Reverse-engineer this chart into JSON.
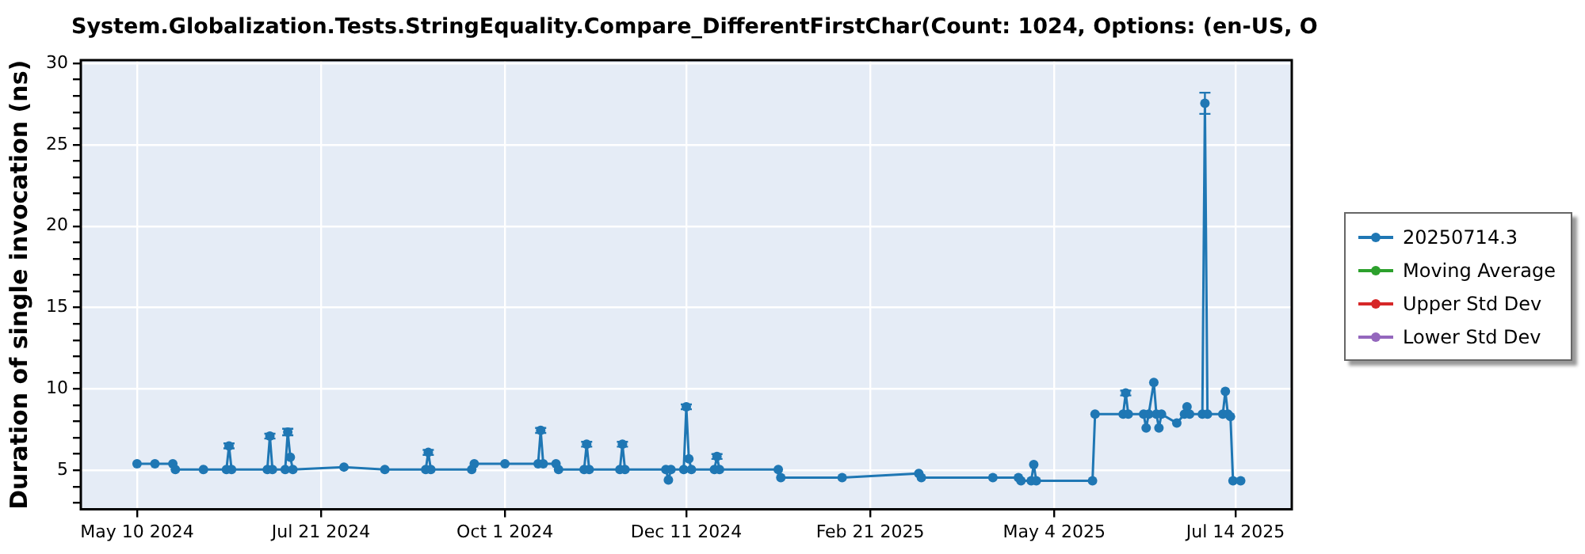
{
  "chart_data": {
    "type": "line",
    "title": "System.Globalization.Tests.StringEquality.Compare_DifferentFirstChar(Count: 1024, Options: (en-US, O",
    "ylabel": "Duration of single invocation (ns)",
    "x": [
      "2024-05-10",
      "2024-05-17",
      "2024-05-24",
      "2024-05-25",
      "2024-06-05",
      "2024-06-14",
      "2024-06-15",
      "2024-06-16",
      "2024-06-30",
      "2024-07-01",
      "2024-07-02",
      "2024-07-07",
      "2024-07-08",
      "2024-07-09",
      "2024-07-10",
      "2024-07-30",
      "2024-08-15",
      "2024-08-31",
      "2024-09-01",
      "2024-09-02",
      "2024-09-18",
      "2024-09-19",
      "2024-10-01",
      "2024-10-14",
      "2024-10-15",
      "2024-10-16",
      "2024-10-21",
      "2024-10-22",
      "2024-11-01",
      "2024-11-02",
      "2024-11-03",
      "2024-11-15",
      "2024-11-16",
      "2024-11-17",
      "2024-12-03",
      "2024-12-04",
      "2024-12-05",
      "2024-12-10",
      "2024-12-11",
      "2024-12-12",
      "2024-12-13",
      "2024-12-22",
      "2024-12-23",
      "2024-12-24",
      "2025-01-16",
      "2025-01-17",
      "2025-02-10",
      "2025-03-12",
      "2025-03-13",
      "2025-04-10",
      "2025-04-20",
      "2025-04-21",
      "2025-04-25",
      "2025-04-26",
      "2025-04-27",
      "2025-05-19",
      "2025-05-20",
      "2025-05-31",
      "2025-06-01",
      "2025-06-02",
      "2025-06-08",
      "2025-06-09",
      "2025-06-10",
      "2025-06-12",
      "2025-06-13",
      "2025-06-14",
      "2025-06-15",
      "2025-06-21",
      "2025-06-24",
      "2025-06-25",
      "2025-06-26",
      "2025-07-01",
      "2025-07-02",
      "2025-07-03",
      "2025-07-09",
      "2025-07-10",
      "2025-07-11",
      "2025-07-12",
      "2025-07-13",
      "2025-07-16"
    ],
    "series": [
      {
        "name": "20250714.3",
        "color": "#1f77b4",
        "values": [
          5.4,
          5.4,
          5.4,
          5.05,
          5.05,
          5.05,
          6.5,
          5.05,
          5.05,
          7.1,
          5.05,
          5.05,
          7.35,
          5.8,
          5.05,
          5.2,
          5.05,
          5.05,
          6.1,
          5.05,
          5.05,
          5.4,
          5.4,
          5.4,
          7.45,
          5.4,
          5.4,
          5.05,
          5.05,
          6.6,
          5.05,
          5.05,
          6.6,
          5.05,
          5.05,
          4.4,
          5.05,
          5.05,
          8.9,
          5.7,
          5.05,
          5.05,
          5.85,
          5.05,
          5.05,
          4.55,
          4.55,
          4.8,
          4.55,
          4.55,
          4.55,
          4.35,
          4.35,
          5.35,
          4.35,
          4.35,
          8.45,
          8.45,
          9.75,
          8.45,
          8.45,
          7.6,
          8.45,
          10.4,
          8.45,
          7.6,
          8.45,
          7.9,
          8.45,
          8.9,
          8.45,
          8.45,
          27.55,
          8.45,
          8.45,
          9.85,
          8.45,
          8.3,
          4.35,
          4.35
        ],
        "errors": [
          null,
          null,
          null,
          null,
          null,
          null,
          0.15,
          null,
          null,
          0.15,
          null,
          null,
          0.2,
          null,
          null,
          null,
          null,
          null,
          0.15,
          null,
          null,
          null,
          null,
          null,
          0.15,
          null,
          null,
          null,
          null,
          0.15,
          null,
          null,
          0.15,
          null,
          null,
          null,
          null,
          null,
          0.15,
          null,
          null,
          null,
          0.15,
          null,
          null,
          null,
          null,
          null,
          null,
          null,
          null,
          null,
          null,
          null,
          null,
          null,
          null,
          null,
          0.15,
          null,
          null,
          null,
          null,
          null,
          null,
          null,
          null,
          null,
          null,
          null,
          null,
          null,
          [
            26.9,
            28.2
          ],
          null,
          null,
          null,
          null,
          null,
          null,
          null
        ]
      },
      {
        "name": "Moving Average",
        "color": "#2ca02c",
        "values": [
          null,
          null,
          null,
          null,
          null,
          null,
          null,
          null,
          null,
          null,
          null,
          null,
          null,
          null,
          null,
          null,
          null,
          null,
          null,
          null,
          null,
          null,
          null,
          null,
          null,
          null,
          null,
          null,
          null,
          null,
          null,
          null,
          null,
          null,
          null,
          null,
          null,
          null,
          null,
          null,
          null,
          null,
          null,
          null,
          null,
          null,
          null,
          null,
          null,
          null,
          null,
          null,
          null,
          null,
          null,
          null,
          null,
          null,
          null,
          null,
          null,
          null,
          null,
          null,
          null,
          null,
          null,
          null,
          null,
          null,
          null,
          null,
          null,
          null,
          null,
          null,
          null,
          null,
          null,
          null
        ]
      },
      {
        "name": "Upper Std Dev",
        "color": "#d62728",
        "values": [
          null,
          null,
          null,
          null,
          null,
          null,
          null,
          null,
          null,
          null,
          null,
          null,
          null,
          null,
          null,
          null,
          null,
          null,
          null,
          null,
          null,
          null,
          null,
          null,
          null,
          null,
          null,
          null,
          null,
          null,
          null,
          null,
          null,
          null,
          null,
          null,
          null,
          null,
          null,
          null,
          null,
          null,
          null,
          null,
          null,
          null,
          null,
          null,
          null,
          null,
          null,
          null,
          null,
          null,
          null,
          null,
          null,
          null,
          null,
          null,
          null,
          null,
          null,
          null,
          null,
          null,
          null,
          null,
          null,
          null,
          null,
          null,
          null,
          null,
          null,
          null,
          null,
          null,
          null,
          null
        ]
      },
      {
        "name": "Lower Std Dev",
        "color": "#9467bd",
        "values": [
          null,
          null,
          null,
          null,
          null,
          null,
          null,
          null,
          null,
          null,
          null,
          null,
          null,
          null,
          null,
          null,
          null,
          null,
          null,
          null,
          null,
          null,
          null,
          null,
          null,
          null,
          null,
          null,
          null,
          null,
          null,
          null,
          null,
          null,
          null,
          null,
          null,
          null,
          null,
          null,
          null,
          null,
          null,
          null,
          null,
          null,
          null,
          null,
          null,
          null,
          null,
          null,
          null,
          null,
          null,
          null,
          null,
          null,
          null,
          null,
          null,
          null,
          null,
          null,
          null,
          null,
          null,
          null,
          null,
          null,
          null,
          null,
          null,
          null,
          null,
          null,
          null,
          null,
          null,
          null
        ]
      }
    ],
    "xlim": [
      "2024-04-18",
      "2025-08-05"
    ],
    "xticks": [
      {
        "value": "2024-05-10",
        "label": "May 10 2024"
      },
      {
        "value": "2024-07-21",
        "label": "Jul 21 2024"
      },
      {
        "value": "2024-10-01",
        "label": "Oct 1 2024"
      },
      {
        "value": "2024-12-11",
        "label": "Dec 11 2024"
      },
      {
        "value": "2025-02-21",
        "label": "Feb 21 2025"
      },
      {
        "value": "2025-05-04",
        "label": "May 4 2025"
      },
      {
        "value": "2025-07-14",
        "label": "Jul 14 2025"
      }
    ],
    "ylim": [
      2.6,
      30.2
    ],
    "yticks": [
      {
        "value": 3,
        "label": null
      },
      {
        "value": 4,
        "label": null
      },
      5,
      {
        "value": 6,
        "label": null
      },
      {
        "value": 7,
        "label": null
      },
      {
        "value": 8,
        "label": null
      },
      {
        "value": 9,
        "label": null
      },
      10,
      {
        "value": 11,
        "label": null
      },
      {
        "value": 12,
        "label": null
      },
      {
        "value": 13,
        "label": null
      },
      {
        "value": 14,
        "label": null
      },
      15,
      {
        "value": 16,
        "label": null
      },
      {
        "value": 17,
        "label": null
      },
      {
        "value": 18,
        "label": null
      },
      {
        "value": 19,
        "label": null
      },
      20,
      {
        "value": 21,
        "label": null
      },
      {
        "value": 22,
        "label": null
      },
      {
        "value": 23,
        "label": null
      },
      {
        "value": 24,
        "label": null
      },
      25,
      {
        "value": 26,
        "label": null
      },
      {
        "value": 27,
        "label": null
      },
      {
        "value": 28,
        "label": null
      },
      {
        "value": 29,
        "label": null
      },
      30
    ],
    "grid": true,
    "legend": "right",
    "marker": "circle",
    "line_style": "solid"
  }
}
